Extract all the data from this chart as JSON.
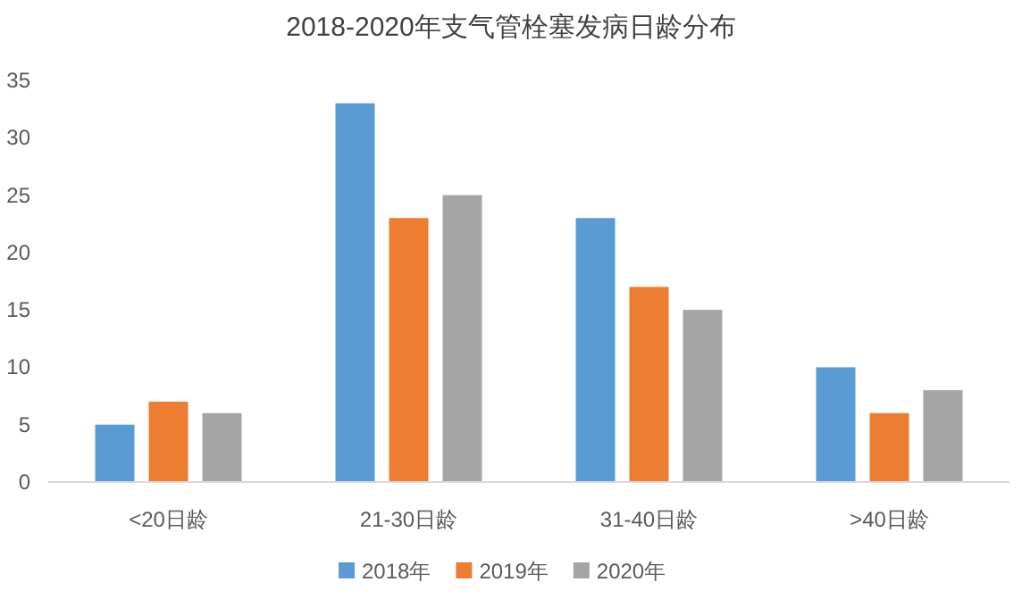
{
  "chart_data": {
    "type": "bar",
    "title": "2018-2020年支气管栓塞发病日龄分布",
    "categories": [
      "<20日龄",
      "21-30日龄",
      "31-40日龄",
      ">40日龄"
    ],
    "series": [
      {
        "name": "2018年",
        "color": "#5b9bd5",
        "values": [
          5,
          33,
          23,
          10
        ]
      },
      {
        "name": "2019年",
        "color": "#ed7d31",
        "values": [
          7,
          23,
          17,
          6
        ]
      },
      {
        "name": "2020年",
        "color": "#a5a5a5",
        "values": [
          6,
          25,
          15,
          8
        ]
      }
    ],
    "ylim": [
      0,
      35
    ],
    "yticks": [
      0,
      5,
      10,
      15,
      20,
      25,
      30,
      35
    ],
    "grid": false,
    "legend": "bottom"
  }
}
